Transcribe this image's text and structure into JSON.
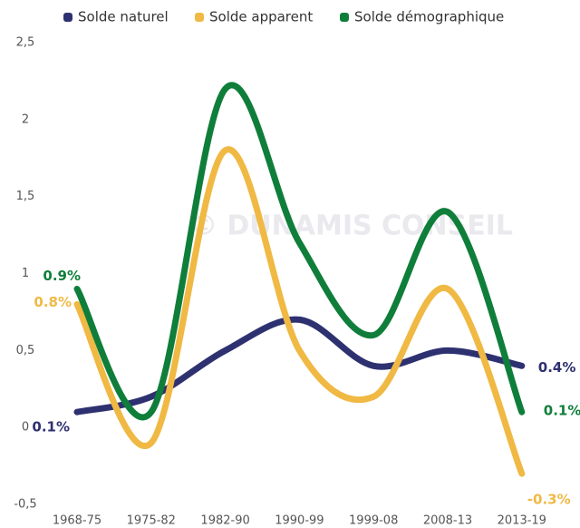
{
  "chart_data": {
    "type": "line",
    "watermark": "© DUNAMIS CONSEIL",
    "categories": [
      "1968-75",
      "1975-82",
      "1982-90",
      "1990-99",
      "1999-08",
      "2008-13",
      "2013-19"
    ],
    "ylim": [
      -0.5,
      2.5
    ],
    "yticks": [
      {
        "value": -0.5,
        "label": "-0,5"
      },
      0,
      {
        "value": 0.5,
        "label": "0,5"
      },
      1,
      {
        "value": 1.5,
        "label": "1,5"
      },
      2,
      {
        "value": 2.5,
        "label": "2,5"
      }
    ],
    "series": [
      {
        "name": "Solde naturel",
        "color": "#2e3170",
        "values": [
          0.1,
          0.2,
          0.5,
          0.7,
          0.4,
          0.5,
          0.4
        ],
        "value_labels": [
          "0.1%",
          null,
          null,
          null,
          null,
          null,
          "0.4%"
        ]
      },
      {
        "name": "Solde apparent",
        "color": "#f0b944",
        "values": [
          0.8,
          -0.1,
          1.8,
          0.5,
          0.2,
          0.9,
          -0.3
        ],
        "value_labels": [
          "0.8%",
          null,
          null,
          null,
          null,
          null,
          "-0.3%"
        ]
      },
      {
        "name": "Solde démographique",
        "color": "#0f7e3a",
        "values": [
          0.9,
          0.1,
          2.2,
          1.2,
          0.6,
          1.4,
          0.1
        ],
        "value_labels": [
          "0.9%",
          null,
          null,
          null,
          null,
          null,
          "0.1%"
        ]
      }
    ]
  }
}
